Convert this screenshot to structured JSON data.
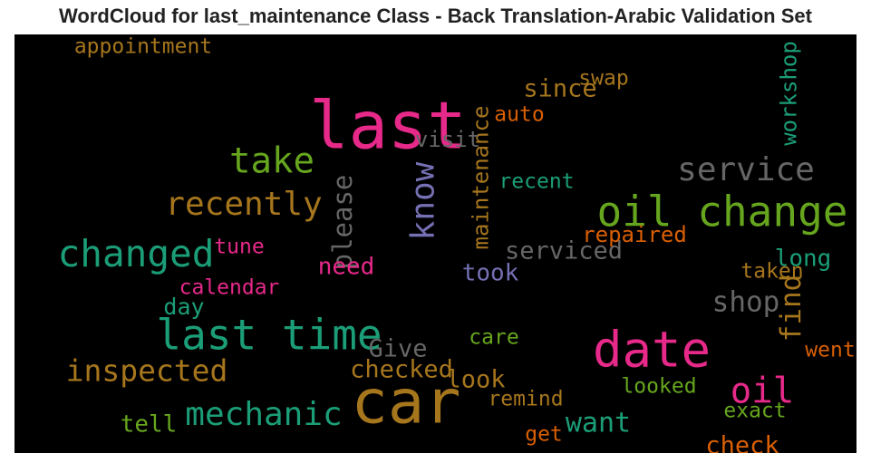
{
  "chart_data": {
    "type": "wordcloud",
    "title": "WordCloud for last_maintenance Class - Back Translation-Arabic Validation Set",
    "background": "#000000",
    "words": [
      {
        "text": "last",
        "weight": 1.0,
        "color": "#e7298a",
        "rotated": false
      },
      {
        "text": "car",
        "weight": 0.92,
        "color": "#a6761d",
        "rotated": false
      },
      {
        "text": "date",
        "weight": 0.72,
        "color": "#e7298a",
        "rotated": false
      },
      {
        "text": "oil change",
        "weight": 0.6,
        "color": "#66a61e",
        "rotated": false
      },
      {
        "text": "last time",
        "weight": 0.6,
        "color": "#1b9e77",
        "rotated": false
      },
      {
        "text": "changed",
        "weight": 0.52,
        "color": "#1b9e77",
        "rotated": false
      },
      {
        "text": "take",
        "weight": 0.48,
        "color": "#66a61e",
        "rotated": false
      },
      {
        "text": "oil",
        "weight": 0.48,
        "color": "#e7298a",
        "rotated": false
      },
      {
        "text": "recently",
        "weight": 0.43,
        "color": "#a6761d",
        "rotated": false
      },
      {
        "text": "service",
        "weight": 0.43,
        "color": "#666666",
        "rotated": false
      },
      {
        "text": "mechanic",
        "weight": 0.43,
        "color": "#1b9e77",
        "rotated": false
      },
      {
        "text": "know",
        "weight": 0.43,
        "color": "#7570b3",
        "rotated": true
      },
      {
        "text": "inspected",
        "weight": 0.38,
        "color": "#a6761d",
        "rotated": false
      },
      {
        "text": "shop",
        "weight": 0.35,
        "color": "#666666",
        "rotated": false
      },
      {
        "text": "find",
        "weight": 0.35,
        "color": "#a6761d",
        "rotated": true
      },
      {
        "text": "want",
        "weight": 0.33,
        "color": "#1b9e77",
        "rotated": false
      },
      {
        "text": "please",
        "weight": 0.3,
        "color": "#666666",
        "rotated": true
      },
      {
        "text": "since",
        "weight": 0.28,
        "color": "#a6761d",
        "rotated": false
      },
      {
        "text": "serviced",
        "weight": 0.28,
        "color": "#666666",
        "rotated": false
      },
      {
        "text": "Give",
        "weight": 0.28,
        "color": "#666666",
        "rotated": false
      },
      {
        "text": "checked",
        "weight": 0.28,
        "color": "#a6761d",
        "rotated": false
      },
      {
        "text": "look",
        "weight": 0.28,
        "color": "#a6761d",
        "rotated": false
      },
      {
        "text": "check",
        "weight": 0.28,
        "color": "#d95f02",
        "rotated": false
      },
      {
        "text": "need",
        "weight": 0.26,
        "color": "#e7298a",
        "rotated": false
      },
      {
        "text": "took",
        "weight": 0.26,
        "color": "#7570b3",
        "rotated": false
      },
      {
        "text": "tell",
        "weight": 0.26,
        "color": "#66a61e",
        "rotated": false
      },
      {
        "text": "long",
        "weight": 0.26,
        "color": "#1b9e77",
        "rotated": false
      },
      {
        "text": "workshop",
        "weight": 0.22,
        "color": "#1b9e77",
        "rotated": true
      },
      {
        "text": "maintenance",
        "weight": 0.22,
        "color": "#a6761d",
        "rotated": true
      },
      {
        "text": "day",
        "weight": 0.24,
        "color": "#1b9e77",
        "rotated": false
      },
      {
        "text": "visit",
        "weight": 0.22,
        "color": "#666666",
        "rotated": false
      },
      {
        "text": "repaired",
        "weight": 0.22,
        "color": "#d95f02",
        "rotated": false
      },
      {
        "text": "appointment",
        "weight": 0.2,
        "color": "#a6761d",
        "rotated": false
      },
      {
        "text": "swap",
        "weight": 0.2,
        "color": "#a6761d",
        "rotated": false
      },
      {
        "text": "auto",
        "weight": 0.2,
        "color": "#d95f02",
        "rotated": false
      },
      {
        "text": "recent",
        "weight": 0.2,
        "color": "#1b9e77",
        "rotated": false
      },
      {
        "text": "tune",
        "weight": 0.2,
        "color": "#e7298a",
        "rotated": false
      },
      {
        "text": "calendar",
        "weight": 0.2,
        "color": "#e7298a",
        "rotated": false
      },
      {
        "text": "taken",
        "weight": 0.2,
        "color": "#a6761d",
        "rotated": false
      },
      {
        "text": "care",
        "weight": 0.2,
        "color": "#66a61e",
        "rotated": false
      },
      {
        "text": "went",
        "weight": 0.2,
        "color": "#d95f02",
        "rotated": false
      },
      {
        "text": "looked",
        "weight": 0.2,
        "color": "#66a61e",
        "rotated": false
      },
      {
        "text": "remind",
        "weight": 0.2,
        "color": "#a6761d",
        "rotated": false
      },
      {
        "text": "exact",
        "weight": 0.2,
        "color": "#66a61e",
        "rotated": false
      },
      {
        "text": "get",
        "weight": 0.2,
        "color": "#d95f02",
        "rotated": false
      }
    ]
  }
}
